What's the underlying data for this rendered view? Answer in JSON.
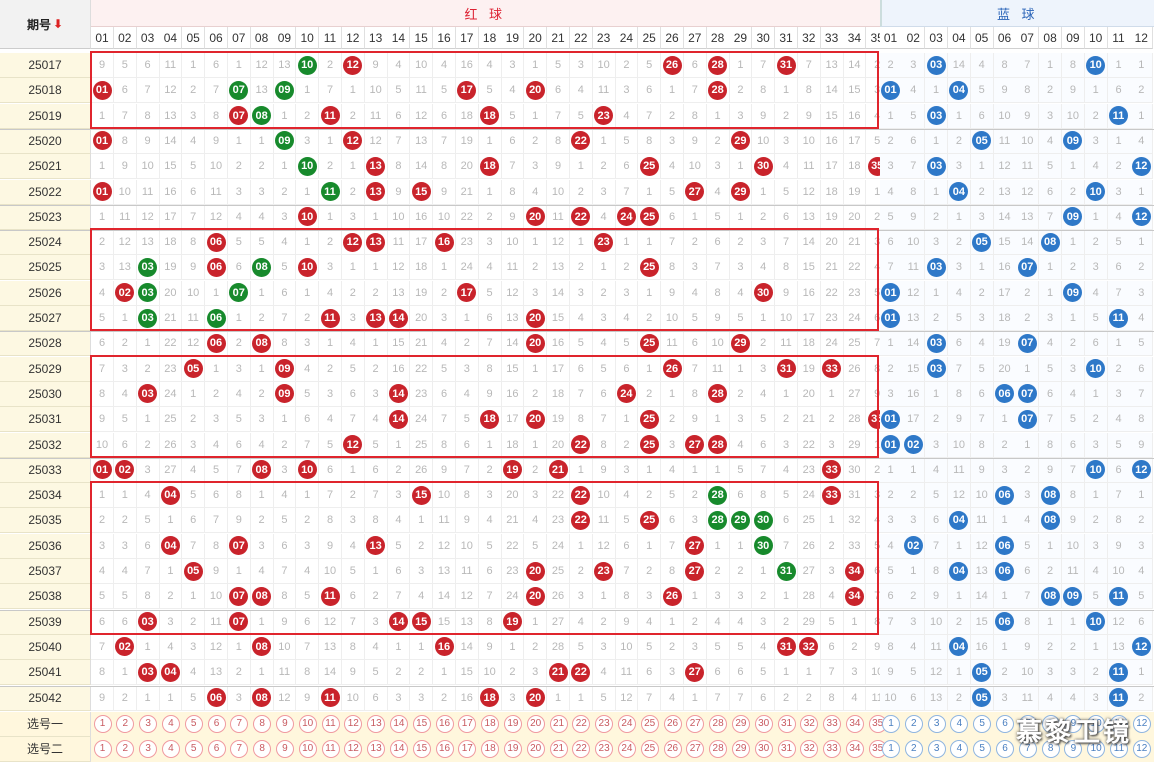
{
  "header": {
    "period_label": "期号",
    "sort_icon": "arrow-down-icon",
    "red_title": "红 球",
    "blue_title": "蓝 球"
  },
  "red_numbers": [
    "01",
    "02",
    "03",
    "04",
    "05",
    "06",
    "07",
    "08",
    "09",
    "10",
    "11",
    "12",
    "13",
    "14",
    "15",
    "16",
    "17",
    "18",
    "19",
    "20",
    "21",
    "22",
    "23",
    "24",
    "25",
    "26",
    "27",
    "28",
    "29",
    "30",
    "31",
    "32",
    "33",
    "34",
    "35"
  ],
  "blue_numbers": [
    "01",
    "02",
    "03",
    "04",
    "05",
    "06",
    "07",
    "08",
    "09",
    "10",
    "11",
    "12"
  ],
  "rows": [
    {
      "period": "25017",
      "red": "9,5,6,11,1,6,1,12,13,10,2,12,9,4,10,4,16,4,3,1,5,3,10,2,5,26,6,28,1,7,31,7,13,14,2",
      "blue": "2,3,03,14,4,8,7,1,8,10,1,1",
      "green": "10"
    },
    {
      "period": "25018",
      "red": "01,6,7,12,2,7,07,13,09,1,7,1,10,5,11,5,17,5,4,20,6,4,11,3,6,1,7,28,2,8,1,8,14,15,3",
      "blue": "01,4,1,04,5,9,8,2,9,1,6,2",
      "green": "07,09"
    },
    {
      "period": "25019",
      "red": "1,7,8,13,3,8,07,08,1,2,11,2,11,6,12,6,18,18,5,1,7,5,23,4,7,2,8,1,3,9,2,9,15,16,4",
      "blue": "1,5,03,1,6,10,9,3,10,2,11,1",
      "green": "08"
    },
    {
      "period": "25020",
      "red": "01,8,9,14,4,9,1,1,09,3,1,12,12,7,13,7,19,1,6,2,8,22,1,5,8,3,9,2,29,10,3,10,16,17,5",
      "blue": "2,6,1,2,05,11,10,4,09,3,1,4",
      "green": "09"
    },
    {
      "period": "25021",
      "red": "1,9,10,15,5,10,2,2,1,10,2,1,13,8,14,8,20,18,7,3,9,1,2,6,25,4,10,3,1,30,4,11,17,18,35",
      "blue": "3,7,03,3,1,12,11,5,1,4,2,12",
      "green": "10"
    },
    {
      "period": "25022",
      "red": "01,10,11,16,6,11,3,3,2,1,11,2,13,9,15,9,21,1,8,4,10,2,3,7,1,5,27,4,29,1,5,12,18,19,1",
      "blue": "4,8,1,04,2,13,12,6,2,10,3,1",
      "green": "11"
    },
    {
      "period": "25023",
      "red": "1,11,12,17,7,12,4,4,3,10,1,3,1,10,16,10,22,2,9,20,11,22,4,24,25,6,1,5,1,2,6,13,19,20,2",
      "blue": "5,9,2,1,3,14,13,7,09,1,4,12",
      "green": ""
    },
    {
      "period": "25024",
      "red": "2,12,13,18,8,06,5,5,4,1,2,12,13,11,17,16,23,3,10,1,12,1,23,1,1,7,2,6,2,3,7,14,20,21,3",
      "blue": "6,10,3,2,05,15,14,08,1,2,5,1",
      "green": ""
    },
    {
      "period": "25025",
      "red": "3,13,03,19,9,06,6,08,5,10,3,1,1,12,18,1,24,4,11,2,13,2,1,2,25,8,3,7,3,4,8,15,21,22,4",
      "blue": "7,11,03,3,1,16,07,1,2,3,6,2",
      "green": "03,08"
    },
    {
      "period": "25026",
      "red": "4,02,03,20,10,1,07,1,6,1,4,2,2,13,19,2,17,5,12,3,14,3,2,3,1,9,4,8,4,30,9,16,22,23,5",
      "blue": "01,12,1,4,2,17,2,1,09,4,7,3",
      "green": "03,07"
    },
    {
      "period": "25027",
      "red": "5,1,03,21,11,06,1,2,7,2,11,3,13,14,20,3,1,6,13,20,15,4,3,4,2,10,5,9,5,1,10,17,23,24,6",
      "blue": "01,13,2,5,3,18,2,3,1,5,11,4",
      "green": "03,06"
    },
    {
      "period": "25028",
      "red": "6,2,1,22,12,06,2,08,8,3,1,4,1,15,21,4,2,7,14,20,16,5,4,5,25,11,6,10,29,2,11,18,24,25,7",
      "blue": "1,14,03,6,4,19,07,4,2,6,1,5",
      "green": ""
    },
    {
      "period": "25029",
      "red": "7,3,2,23,05,1,3,1,09,4,2,5,2,16,22,5,3,8,15,1,17,6,5,6,1,26,7,11,1,3,31,19,33,26,8",
      "blue": "2,15,03,7,5,20,1,5,3,10,2,6",
      "green": ""
    },
    {
      "period": "25030",
      "red": "8,4,03,24,1,2,4,2,09,5,3,6,3,14,23,6,4,9,16,2,18,7,6,24,2,1,8,28,2,4,1,20,1,27,9",
      "blue": "3,16,1,8,6,06,07,6,4,1,3,7",
      "green": ""
    },
    {
      "period": "25031",
      "red": "9,5,1,25,2,3,5,3,1,6,4,7,4,14,24,7,5,18,17,20,19,8,7,1,25,2,9,1,3,5,2,21,2,28,35",
      "blue": "01,17,2,9,7,1,07,7,5,2,4,8",
      "green": ""
    },
    {
      "period": "25032",
      "red": "10,6,2,26,3,4,6,4,2,7,5,12,5,1,25,8,6,1,18,1,20,22,8,2,25,3,27,28,4,6,3,22,3,29,1",
      "blue": "01,02,3,10,8,2,1,8,6,3,5,9",
      "green": ""
    },
    {
      "period": "25033",
      "red": "01,02,3,27,4,5,7,08,3,10,6,1,6,2,26,9,7,2,19,2,21,1,9,3,1,4,1,1,5,7,4,23,33,30,2",
      "blue": "1,1,4,11,9,3,2,9,7,10,6,12",
      "green": ""
    },
    {
      "period": "25034",
      "red": "1,1,4,04,5,6,8,1,4,1,7,2,7,3,15,10,8,3,20,3,22,22,10,4,2,5,2,28,6,8,5,24,33,31,3",
      "blue": "2,2,5,12,10,06,3,08,8,1,7,1",
      "green": "28"
    },
    {
      "period": "25035",
      "red": "2,2,5,1,6,7,9,2,5,2,8,3,8,4,1,11,9,4,21,4,23,22,11,5,25,6,3,28,29,30,6,25,1,32,4",
      "blue": "3,3,6,04,11,1,4,08,9,2,8,2",
      "green": "28,29,30"
    },
    {
      "period": "25036",
      "red": "3,3,6,04,7,8,07,3,6,3,9,4,13,5,2,12,10,5,22,5,24,1,12,6,1,7,27,1,1,30,7,26,2,33,5",
      "blue": "4,02,7,1,12,06,5,1,10,3,9,3",
      "green": "30"
    },
    {
      "period": "25037",
      "red": "4,4,7,1,05,9,1,4,7,4,10,5,1,6,3,13,11,6,23,20,25,2,23,7,2,8,27,2,2,1,31,27,3,34,6",
      "blue": "5,1,8,04,13,06,6,2,11,4,10,4",
      "green": "31"
    },
    {
      "period": "25038",
      "red": "5,5,8,2,1,10,07,08,8,5,11,6,2,7,4,14,12,7,24,20,26,3,1,8,3,26,1,3,3,2,1,28,4,34,7",
      "blue": "6,2,9,1,14,1,7,08,09,5,11,5",
      "green": ""
    },
    {
      "period": "25039",
      "red": "6,6,03,3,2,11,07,1,9,6,12,7,3,14,15,15,13,8,19,1,27,4,2,9,4,1,2,4,4,3,2,29,5,1,8",
      "blue": "7,3,10,2,15,06,8,1,1,10,12,6",
      "green": ""
    },
    {
      "period": "25040",
      "red": "7,02,1,4,3,12,1,08,10,7,13,8,4,1,1,16,14,9,1,2,28,5,3,10,5,2,3,5,5,4,31,32,6,2,9",
      "blue": "8,4,11,04,16,1,9,2,2,1,13,12",
      "green": ""
    },
    {
      "period": "25041",
      "red": "8,1,03,04,4,13,2,1,11,8,14,9,5,2,2,1,15,10,2,3,21,22,4,11,6,3,27,6,6,5,1,1,7,3,10",
      "blue": "9,5,12,1,05,2,10,3,3,2,11,1",
      "green": ""
    },
    {
      "period": "25042",
      "red": "9,2,1,1,5,06,3,08,12,9,11,10,6,3,3,2,16,18,3,20,1,1,5,12,7,4,1,7,7,6,2,2,8,4,11",
      "blue": "10,6,13,2,05,3,11,4,4,3,11,2",
      "green": ""
    }
  ],
  "select_rows": [
    {
      "label": "选号一"
    },
    {
      "label": "选号二"
    }
  ],
  "watermark": "慕黎卫镜"
}
